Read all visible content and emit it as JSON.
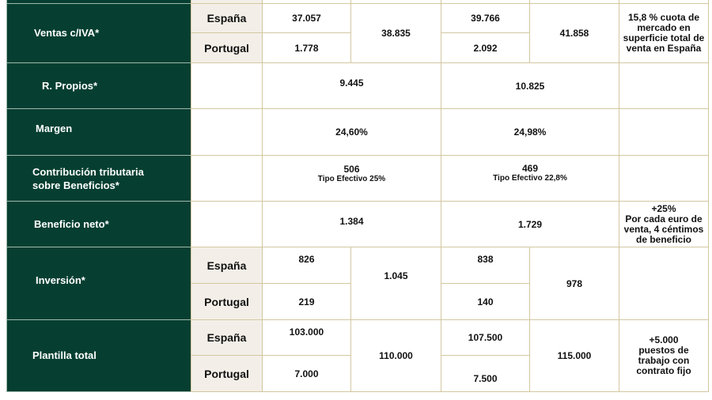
{
  "rows": {
    "ventas": {
      "label": "Ventas c/IVA*",
      "espana_label": "España",
      "portugal_label": "Portugal",
      "y1_espana": "37.057",
      "y1_portugal": "1.778",
      "y1_total": "38.835",
      "y2_espana": "39.766",
      "y2_portugal": "2.092",
      "y2_total": "41.858",
      "note": "15,8 % cuota de mercado en superficie total de venta en España"
    },
    "recursos": {
      "label": "R. Propios*",
      "y1": "9.445",
      "y2": "10.825"
    },
    "margen": {
      "label": "Margen",
      "y1": "24,60%",
      "y2": "24,98%"
    },
    "contribucion": {
      "label": "Contribución tributaria sobre Beneficios*",
      "y1": "506",
      "y1_sub": "Tipo Efectivo 25%",
      "y2": "469",
      "y2_sub": "Tipo Efectivo 22,8%"
    },
    "beneficio": {
      "label": "Beneficio neto*",
      "y1": "1.384",
      "y2": "1.729",
      "note_head": "+25%",
      "note": "Por cada euro de venta, 4 céntimos de beneficio"
    },
    "inversion": {
      "label": "Inversión*",
      "espana_label": "España",
      "portugal_label": "Portugal",
      "y1_espana": "826",
      "y1_portugal": "219",
      "y1_total": "1.045",
      "y2_espana": "838",
      "y2_portugal": "140",
      "y2_total": "978"
    },
    "plantilla": {
      "label": "Plantilla total",
      "espana_label": "España",
      "portugal_label": "Portugal",
      "y1_espana": "103.000",
      "y1_portugal": "7.000",
      "y1_total": "110.000",
      "y2_espana": "107.500",
      "y2_portugal": "7.500",
      "y2_total": "115.000",
      "note": "+5.000 puestos de trabajo con contrato fijo"
    }
  },
  "colors": {
    "label_bg": "#063f31",
    "country_bg": "#f3efe8",
    "border": "#d3c7a0"
  }
}
